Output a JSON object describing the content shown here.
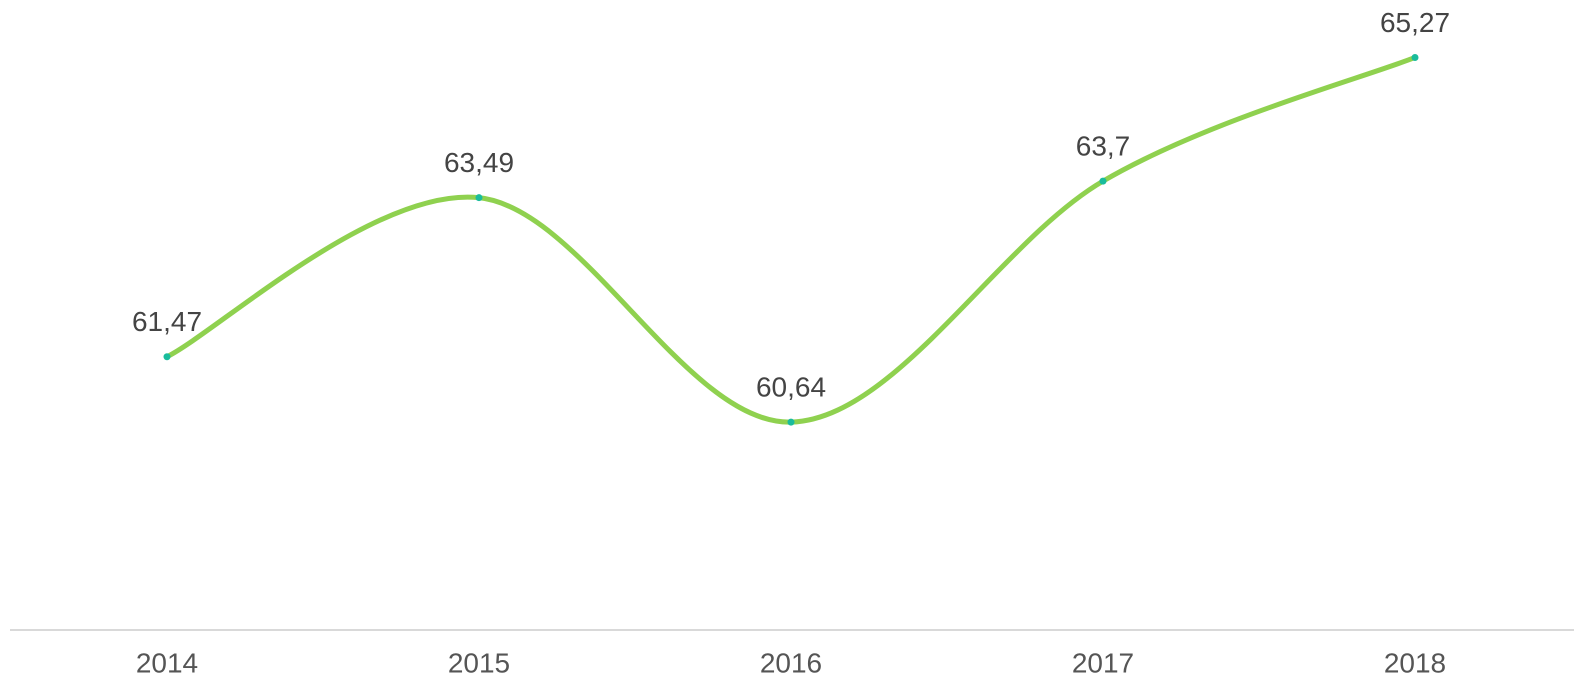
{
  "chart_data": {
    "type": "line",
    "categories": [
      "2014",
      "2015",
      "2016",
      "2017",
      "2018"
    ],
    "values": [
      61.47,
      63.49,
      60.64,
      63.7,
      65.27
    ],
    "value_labels": [
      "61,47",
      "63,49",
      "60,64",
      "63,7",
      "65,27"
    ],
    "color": "#8fd14f",
    "marker_color": "#1abc9c",
    "smooth": true,
    "ylim": [
      58,
      66
    ]
  }
}
